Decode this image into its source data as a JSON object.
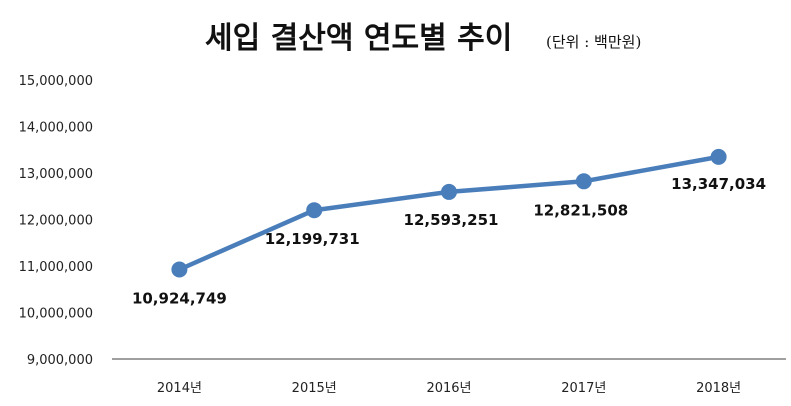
{
  "chart_data": {
    "type": "line",
    "title": "세입 결산액 연도별 추이",
    "subtitle": "(단위 : 백만원)",
    "categories": [
      "2014년",
      "2015년",
      "2016년",
      "2017년",
      "2018년"
    ],
    "values": [
      10924749,
      12199731,
      12593251,
      12821508,
      13347034
    ],
    "data_labels": [
      "10,924,749",
      "12,199,731",
      "12,593,251",
      "12,821,508",
      "13,347,034"
    ],
    "yticks": [
      "9,000,000",
      "10,000,000",
      "11,000,000",
      "12,000,000",
      "13,000,000",
      "14,000,000",
      "15,000,000"
    ],
    "ylim": [
      9000000,
      15000000
    ],
    "ystep": 1000000,
    "xlabel": "",
    "ylabel": "",
    "grid": false,
    "series_color": "#4a7ebb",
    "axis_color": "#808080"
  }
}
